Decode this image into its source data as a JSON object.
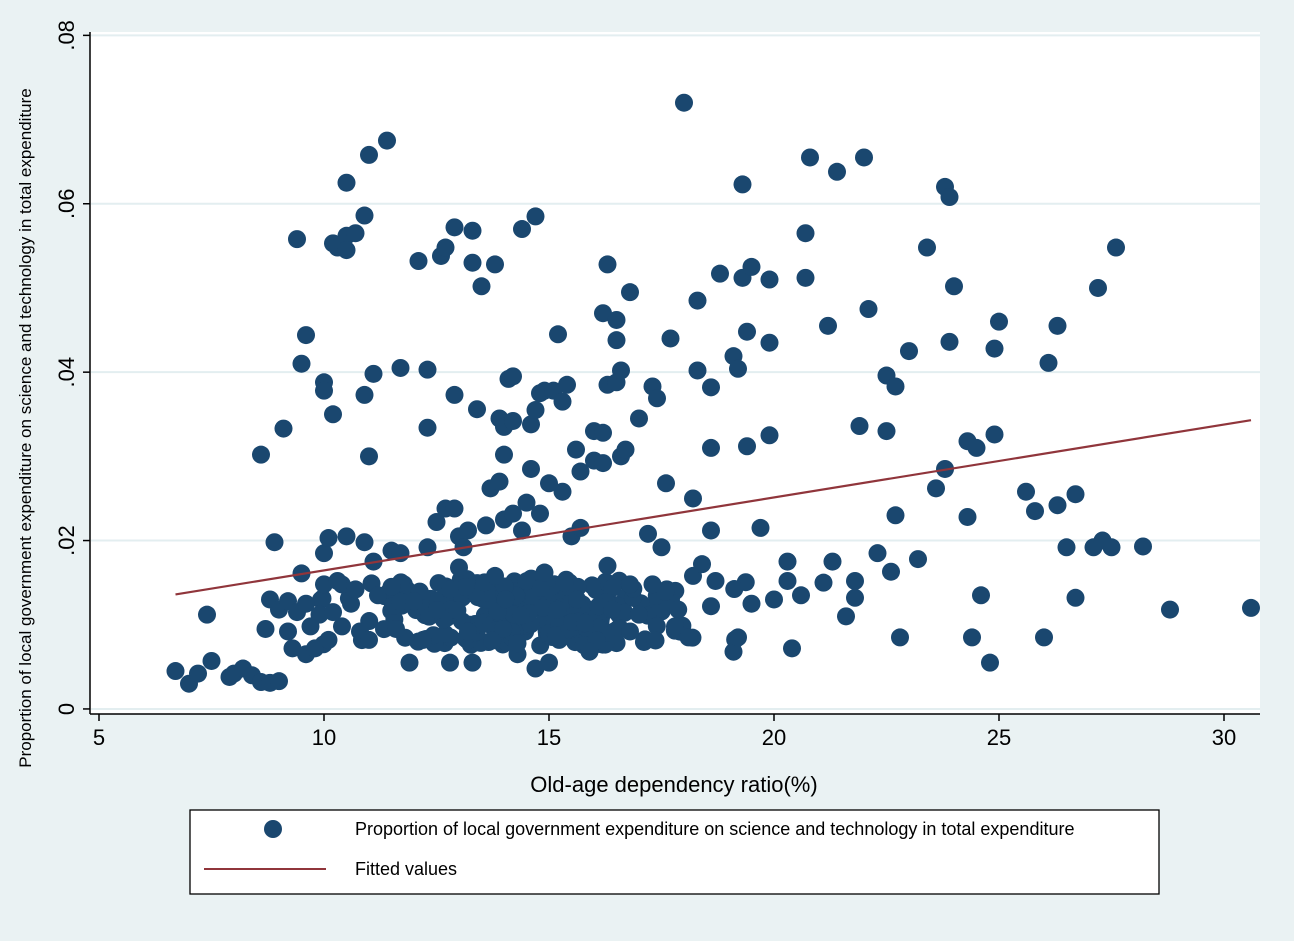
{
  "chart_data": {
    "type": "scatter",
    "title": "",
    "xlabel": "Old-age dependency ratio(%)",
    "ylabel": "Proportion of local government expenditure on science and technology in total expenditure",
    "xlim": [
      4.8,
      30.8
    ],
    "ylim": [
      -0.0006,
      0.0804
    ],
    "x_ticks": [
      5,
      10,
      15,
      20,
      25,
      30
    ],
    "x_tick_labels": [
      "5",
      "10",
      "15",
      "20",
      "25",
      "30"
    ],
    "y_ticks": [
      0,
      0.02,
      0.04,
      0.06,
      0.08
    ],
    "y_tick_labels": [
      "0",
      ".02",
      ".04",
      ".06",
      ".08"
    ],
    "grid": "horizontal",
    "legend_position": "bottom",
    "colors": {
      "background": "#eaf2f3",
      "plot_area": "#ffffff",
      "grid": "#e3eef0",
      "markers": "#1a476f",
      "fit_line": "#90353b"
    },
    "series": [
      {
        "name": "Proportion of local government expenditure on science and technology in total expenditure",
        "type": "scatter",
        "points": [
          [
            6.7,
            0.0045
          ],
          [
            7.0,
            0.003
          ],
          [
            7.2,
            0.0042
          ],
          [
            7.4,
            0.0112
          ],
          [
            7.5,
            0.0057
          ],
          [
            7.9,
            0.0038
          ],
          [
            8.0,
            0.0042
          ],
          [
            8.2,
            0.0048
          ],
          [
            8.4,
            0.004
          ],
          [
            8.6,
            0.0032
          ],
          [
            8.6,
            0.0302
          ],
          [
            8.7,
            0.0095
          ],
          [
            8.8,
            0.0031
          ],
          [
            8.8,
            0.013
          ],
          [
            8.9,
            0.0198
          ],
          [
            9.0,
            0.0033
          ],
          [
            9.0,
            0.0118
          ],
          [
            9.1,
            0.0333
          ],
          [
            9.2,
            0.0128
          ],
          [
            9.2,
            0.0092
          ],
          [
            9.3,
            0.0072
          ],
          [
            9.4,
            0.0558
          ],
          [
            9.4,
            0.0115
          ],
          [
            9.5,
            0.041
          ],
          [
            9.5,
            0.0161
          ],
          [
            9.6,
            0.0444
          ],
          [
            9.6,
            0.0125
          ],
          [
            9.6,
            0.0065
          ],
          [
            9.7,
            0.0098
          ],
          [
            9.8,
            0.0072
          ],
          [
            9.9,
            0.0112
          ],
          [
            10.0,
            0.0388
          ],
          [
            10.0,
            0.0378
          ],
          [
            10.0,
            0.0185
          ],
          [
            10.0,
            0.0148
          ],
          [
            10.1,
            0.0203
          ],
          [
            10.1,
            0.0082
          ],
          [
            10.2,
            0.0553
          ],
          [
            10.2,
            0.035
          ],
          [
            10.2,
            0.0115
          ],
          [
            10.3,
            0.0548
          ],
          [
            10.3,
            0.0152
          ],
          [
            10.4,
            0.0098
          ],
          [
            10.5,
            0.0625
          ],
          [
            10.5,
            0.0562
          ],
          [
            10.5,
            0.0545
          ],
          [
            10.5,
            0.0205
          ],
          [
            10.6,
            0.0125
          ],
          [
            10.7,
            0.0565
          ],
          [
            10.7,
            0.0142
          ],
          [
            10.8,
            0.0092
          ],
          [
            10.9,
            0.0586
          ],
          [
            10.9,
            0.0373
          ],
          [
            10.9,
            0.0198
          ],
          [
            11.0,
            0.0658
          ],
          [
            11.0,
            0.03
          ],
          [
            11.0,
            0.0082
          ],
          [
            11.1,
            0.0398
          ],
          [
            11.1,
            0.0175
          ],
          [
            11.2,
            0.0135
          ],
          [
            11.4,
            0.0675
          ],
          [
            11.5,
            0.0188
          ],
          [
            11.5,
            0.0145
          ],
          [
            11.6,
            0.0095
          ],
          [
            11.7,
            0.0405
          ],
          [
            11.7,
            0.0185
          ],
          [
            11.9,
            0.0055
          ],
          [
            12.0,
            0.0128
          ],
          [
            12.1,
            0.0532
          ],
          [
            12.2,
            0.0082
          ],
          [
            12.3,
            0.0403
          ],
          [
            12.3,
            0.0334
          ],
          [
            12.3,
            0.0192
          ],
          [
            12.5,
            0.0222
          ],
          [
            12.6,
            0.0538
          ],
          [
            12.7,
            0.0548
          ],
          [
            12.7,
            0.0238
          ],
          [
            12.8,
            0.0142
          ],
          [
            12.8,
            0.0055
          ],
          [
            12.9,
            0.0572
          ],
          [
            12.9,
            0.0373
          ],
          [
            12.9,
            0.0238
          ],
          [
            13.0,
            0.0205
          ],
          [
            13.0,
            0.0168
          ],
          [
            13.1,
            0.0192
          ],
          [
            13.2,
            0.0092
          ],
          [
            13.2,
            0.0212
          ],
          [
            13.3,
            0.0568
          ],
          [
            13.3,
            0.053
          ],
          [
            13.3,
            0.0055
          ],
          [
            13.4,
            0.0356
          ],
          [
            13.5,
            0.0502
          ],
          [
            13.6,
            0.0218
          ],
          [
            13.7,
            0.0262
          ],
          [
            13.8,
            0.0528
          ],
          [
            13.8,
            0.0158
          ],
          [
            13.9,
            0.0345
          ],
          [
            13.9,
            0.027
          ],
          [
            14.0,
            0.0302
          ],
          [
            14.0,
            0.0335
          ],
          [
            14.0,
            0.0225
          ],
          [
            14.1,
            0.0392
          ],
          [
            14.2,
            0.0395
          ],
          [
            14.2,
            0.0342
          ],
          [
            14.2,
            0.0232
          ],
          [
            14.3,
            0.0065
          ],
          [
            14.3,
            0.0078
          ],
          [
            14.4,
            0.057
          ],
          [
            14.4,
            0.0212
          ],
          [
            14.5,
            0.0245
          ],
          [
            14.6,
            0.0285
          ],
          [
            14.6,
            0.0338
          ],
          [
            14.7,
            0.0585
          ],
          [
            14.7,
            0.0355
          ],
          [
            14.7,
            0.0048
          ],
          [
            14.8,
            0.0375
          ],
          [
            14.8,
            0.0232
          ],
          [
            14.9,
            0.0378
          ],
          [
            14.9,
            0.0162
          ],
          [
            15.0,
            0.0055
          ],
          [
            15.0,
            0.0268
          ],
          [
            15.1,
            0.0378
          ],
          [
            15.2,
            0.0445
          ],
          [
            15.3,
            0.0258
          ],
          [
            15.3,
            0.0365
          ],
          [
            15.4,
            0.0385
          ],
          [
            15.5,
            0.0205
          ],
          [
            15.6,
            0.0308
          ],
          [
            15.7,
            0.0282
          ],
          [
            15.7,
            0.0215
          ],
          [
            15.8,
            0.0102
          ],
          [
            15.9,
            0.0068
          ],
          [
            16.0,
            0.0295
          ],
          [
            16.0,
            0.033
          ],
          [
            16.1,
            0.0122
          ],
          [
            16.2,
            0.047
          ],
          [
            16.2,
            0.0328
          ],
          [
            16.2,
            0.0292
          ],
          [
            16.3,
            0.0528
          ],
          [
            16.3,
            0.0385
          ],
          [
            16.3,
            0.017
          ],
          [
            16.4,
            0.0118
          ],
          [
            16.5,
            0.0462
          ],
          [
            16.5,
            0.0438
          ],
          [
            16.5,
            0.0388
          ],
          [
            16.6,
            0.0402
          ],
          [
            16.6,
            0.03
          ],
          [
            16.7,
            0.0308
          ],
          [
            16.8,
            0.0495
          ],
          [
            16.8,
            0.0148
          ],
          [
            16.8,
            0.0092
          ],
          [
            17.0,
            0.0345
          ],
          [
            17.0,
            0.0112
          ],
          [
            17.2,
            0.0208
          ],
          [
            17.3,
            0.0383
          ],
          [
            17.3,
            0.0148
          ],
          [
            17.4,
            0.0369
          ],
          [
            17.5,
            0.0192
          ],
          [
            17.6,
            0.0268
          ],
          [
            17.7,
            0.044
          ],
          [
            17.8,
            0.0098
          ],
          [
            18.0,
            0.072
          ],
          [
            18.1,
            0.0085
          ],
          [
            18.2,
            0.025
          ],
          [
            18.2,
            0.0158
          ],
          [
            18.3,
            0.0485
          ],
          [
            18.3,
            0.0402
          ],
          [
            18.4,
            0.0172
          ],
          [
            18.6,
            0.0382
          ],
          [
            18.6,
            0.031
          ],
          [
            18.6,
            0.0212
          ],
          [
            18.6,
            0.0122
          ],
          [
            18.7,
            0.0152
          ],
          [
            18.8,
            0.0517
          ],
          [
            19.1,
            0.0068
          ],
          [
            19.1,
            0.0419
          ],
          [
            19.2,
            0.0404
          ],
          [
            19.2,
            0.0085
          ],
          [
            19.3,
            0.0623
          ],
          [
            19.3,
            0.0512
          ],
          [
            19.4,
            0.0448
          ],
          [
            19.4,
            0.0312
          ],
          [
            19.5,
            0.0525
          ],
          [
            19.5,
            0.0125
          ],
          [
            19.7,
            0.0215
          ],
          [
            19.9,
            0.051
          ],
          [
            19.9,
            0.0435
          ],
          [
            19.9,
            0.0325
          ],
          [
            20.0,
            0.013
          ],
          [
            20.3,
            0.0175
          ],
          [
            20.3,
            0.0152
          ],
          [
            20.4,
            0.0072
          ],
          [
            20.6,
            0.0135
          ],
          [
            20.7,
            0.0565
          ],
          [
            20.7,
            0.0512
          ],
          [
            20.8,
            0.0655
          ],
          [
            21.1,
            0.015
          ],
          [
            21.2,
            0.0455
          ],
          [
            21.3,
            0.0175
          ],
          [
            21.4,
            0.0638
          ],
          [
            21.6,
            0.011
          ],
          [
            21.8,
            0.0152
          ],
          [
            21.8,
            0.0132
          ],
          [
            21.9,
            0.0336
          ],
          [
            22.0,
            0.0655
          ],
          [
            22.1,
            0.0475
          ],
          [
            22.3,
            0.0185
          ],
          [
            22.5,
            0.0396
          ],
          [
            22.5,
            0.033
          ],
          [
            22.6,
            0.0163
          ],
          [
            22.7,
            0.0383
          ],
          [
            22.7,
            0.023
          ],
          [
            22.8,
            0.0085
          ],
          [
            23.0,
            0.0425
          ],
          [
            23.2,
            0.0178
          ],
          [
            23.4,
            0.0548
          ],
          [
            23.6,
            0.0262
          ],
          [
            23.8,
            0.062
          ],
          [
            23.8,
            0.0285
          ],
          [
            23.9,
            0.0608
          ],
          [
            23.9,
            0.0436
          ],
          [
            24.0,
            0.0502
          ],
          [
            24.3,
            0.0318
          ],
          [
            24.3,
            0.0228
          ],
          [
            24.4,
            0.0085
          ],
          [
            24.5,
            0.031
          ],
          [
            24.6,
            0.0135
          ],
          [
            24.8,
            0.0055
          ],
          [
            24.9,
            0.0428
          ],
          [
            24.9,
            0.0326
          ],
          [
            25.0,
            0.046
          ],
          [
            25.6,
            0.0258
          ],
          [
            25.8,
            0.0235
          ],
          [
            26.0,
            0.0085
          ],
          [
            26.1,
            0.0411
          ],
          [
            26.3,
            0.0455
          ],
          [
            26.3,
            0.0242
          ],
          [
            26.5,
            0.0192
          ],
          [
            26.7,
            0.0255
          ],
          [
            26.7,
            0.0132
          ],
          [
            27.1,
            0.0192
          ],
          [
            27.2,
            0.05
          ],
          [
            27.3,
            0.02
          ],
          [
            27.5,
            0.0192
          ],
          [
            27.6,
            0.0548
          ],
          [
            28.2,
            0.0193
          ],
          [
            28.8,
            0.0118
          ],
          [
            30.6,
            0.012
          ]
        ]
      },
      {
        "name": "Fitted values",
        "type": "line",
        "points": [
          [
            6.7,
            0.0136
          ],
          [
            30.6,
            0.0343
          ]
        ]
      }
    ],
    "cluster": {
      "count": 240,
      "x_range": [
        8.8,
        19.9
      ],
      "y_range": [
        0.0075,
        0.0155
      ],
      "seed": 17
    }
  }
}
